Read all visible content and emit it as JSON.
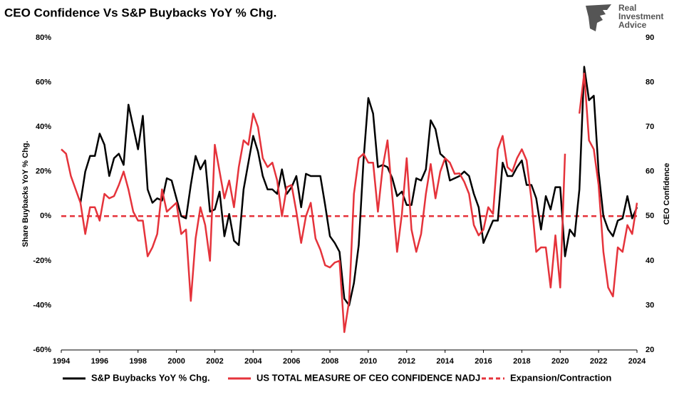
{
  "chart_data": {
    "type": "line",
    "title": "CEO Confidence Vs S&P Buybacks YoY % Chg.",
    "logo_text": [
      "Real",
      "Investment",
      "Advice"
    ],
    "ylabel": "Share Buybacks YoY % Chg.",
    "y2label": "CEO Confidence",
    "x": [
      1994,
      1994.25,
      1994.5,
      1994.75,
      1995,
      1995.25,
      1995.5,
      1995.75,
      1996,
      1996.25,
      1996.5,
      1996.75,
      1997,
      1997.25,
      1997.5,
      1997.75,
      1998,
      1998.25,
      1998.5,
      1998.75,
      1999,
      1999.25,
      1999.5,
      1999.75,
      2000,
      2000.25,
      2000.5,
      2000.75,
      2001,
      2001.25,
      2001.5,
      2001.75,
      2002,
      2002.25,
      2002.5,
      2002.75,
      2003,
      2003.25,
      2003.5,
      2003.75,
      2004,
      2004.25,
      2004.5,
      2004.75,
      2005,
      2005.25,
      2005.5,
      2005.75,
      2006,
      2006.25,
      2006.5,
      2006.75,
      2007,
      2007.25,
      2007.5,
      2007.75,
      2008,
      2008.25,
      2008.5,
      2008.75,
      2009,
      2009.25,
      2009.5,
      2009.75,
      2010,
      2010.25,
      2010.5,
      2010.75,
      2011,
      2011.25,
      2011.5,
      2011.75,
      2012,
      2012.25,
      2012.5,
      2012.75,
      2013,
      2013.25,
      2013.5,
      2013.75,
      2014,
      2014.25,
      2014.5,
      2014.75,
      2015,
      2015.25,
      2015.5,
      2015.75,
      2016,
      2016.25,
      2016.5,
      2016.75,
      2017,
      2017.25,
      2017.5,
      2017.75,
      2018,
      2018.25,
      2018.5,
      2018.75,
      2019,
      2019.25,
      2019.5,
      2019.75,
      2020,
      2020.25,
      2020.5,
      2020.75,
      2021,
      2021.25,
      2021.5,
      2021.75,
      2022,
      2022.25,
      2022.5,
      2022.75,
      2023,
      2023.25,
      2023.5,
      2023.75,
      2024
    ],
    "series": [
      {
        "name": "S&P Buybacks YoY % Chg.",
        "color": "#000000",
        "axis": "y",
        "values": [
          null,
          null,
          null,
          null,
          6,
          20,
          27,
          27,
          37,
          32,
          18,
          26,
          28,
          23,
          50,
          40,
          30,
          45,
          12,
          6,
          8,
          7,
          17,
          16,
          8,
          0,
          -1,
          14,
          27,
          21,
          25,
          2,
          3,
          11,
          -9,
          1,
          -11,
          -13,
          12,
          24,
          36,
          29,
          18,
          12,
          12,
          10,
          21,
          10,
          13,
          18,
          4,
          19,
          18,
          18,
          18,
          5,
          -9,
          -12,
          -16,
          -37,
          -40,
          -30,
          -13,
          25,
          53,
          46,
          22,
          23,
          22,
          17,
          9,
          11,
          5,
          5,
          17,
          16,
          21,
          43,
          39,
          28,
          26,
          16,
          17,
          18,
          20,
          18,
          10,
          4,
          -12,
          -7,
          -2,
          -2,
          24,
          18,
          18,
          22,
          25,
          14,
          14,
          8,
          -6,
          9,
          3,
          13,
          13,
          -18,
          -6,
          -9,
          12,
          67,
          52,
          54,
          20,
          0,
          -6,
          -9,
          -2,
          -1,
          9,
          -1,
          4
        ]
      },
      {
        "name": "US TOTAL MEASURE OF CEO CONFIDENCE NADJ",
        "color": "#e5333b",
        "axis": "y2",
        "values": [
          65,
          64,
          59,
          56,
          53,
          46,
          52,
          52,
          49,
          55,
          54,
          54.5,
          57,
          60,
          56,
          51,
          49,
          49,
          41,
          43,
          46,
          56,
          51,
          52,
          53,
          46,
          47,
          31,
          45,
          52,
          48,
          40,
          66,
          60,
          54,
          58,
          52,
          61,
          67,
          66,
          73,
          70,
          63,
          61,
          62,
          58,
          50,
          56.5,
          57,
          51,
          44,
          50,
          53,
          45,
          42.5,
          39,
          38.5,
          39.6,
          40,
          24,
          31,
          55,
          63,
          64,
          62,
          62,
          51,
          61,
          67,
          54.5,
          42,
          50.5,
          63,
          47,
          42,
          46,
          55,
          61.7,
          54,
          60,
          63,
          62,
          59.5,
          59.6,
          57.7,
          55,
          48,
          45.7,
          47,
          52,
          50.5,
          65,
          68,
          61,
          60,
          63,
          65,
          62.5,
          53.7,
          42,
          43,
          43,
          34,
          45.7,
          34,
          64,
          null,
          null,
          73,
          82,
          67,
          65,
          57,
          42,
          34,
          32,
          43,
          42,
          48,
          46,
          53
        ]
      }
    ],
    "reference_line": {
      "name": "Expansion/Contraction",
      "value": 0,
      "color": "#e5333b",
      "dashed": true
    },
    "xlim": [
      1994,
      2024
    ],
    "xticks": [
      1994,
      1996,
      1998,
      2000,
      2002,
      2004,
      2006,
      2008,
      2010,
      2012,
      2014,
      2016,
      2018,
      2020,
      2022,
      2024
    ],
    "ylim": [
      -60,
      80
    ],
    "yticks": [
      {
        "value": -60,
        "label": "-60%"
      },
      {
        "value": -40,
        "label": "-40%"
      },
      {
        "value": -20,
        "label": "-20%"
      },
      {
        "value": 0,
        "label": "0%"
      },
      {
        "value": 20,
        "label": "20%"
      },
      {
        "value": 40,
        "label": "40%"
      },
      {
        "value": 60,
        "label": "60%"
      },
      {
        "value": 80,
        "label": "80%"
      }
    ],
    "y2lim": [
      20,
      90
    ],
    "y2ticks": [
      20,
      30,
      40,
      50,
      60,
      70,
      80,
      90
    ],
    "grid": false,
    "legend": "bottom"
  }
}
